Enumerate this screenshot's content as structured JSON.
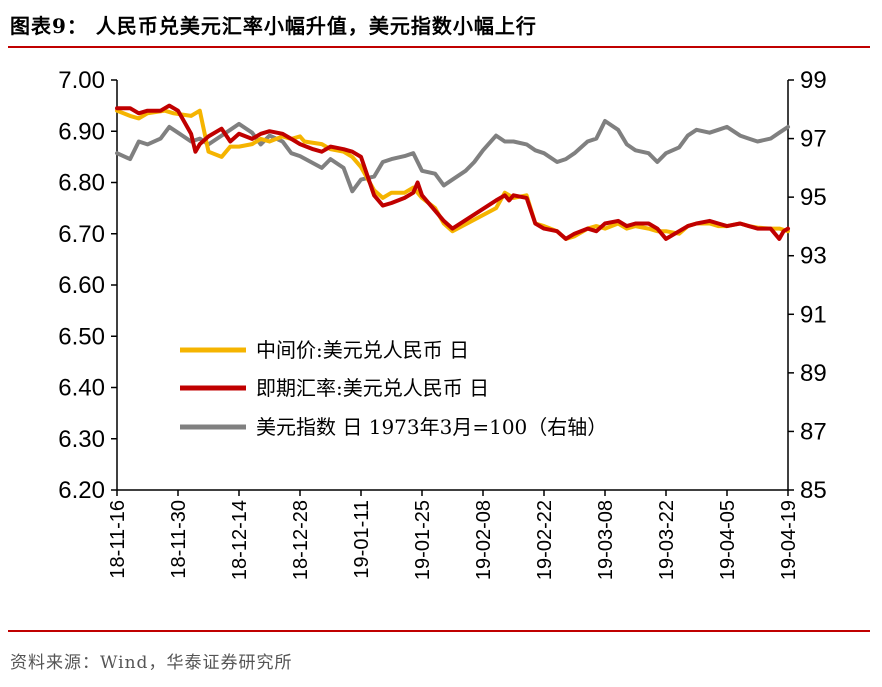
{
  "header": {
    "title": "图表9：  人民币兑美元汇率小幅升值，美元指数小幅上行"
  },
  "footer": {
    "source": "资料来源：Wind，华泰证券研究所"
  },
  "colors": {
    "series_1": "#f5b400",
    "series_2": "#c00000",
    "series_3": "#808080",
    "rule": "#c00000"
  },
  "chart_data": {
    "type": "line",
    "title": "",
    "x_tick_labels": [
      "18-11-16",
      "18-11-30",
      "18-12-14",
      "18-12-28",
      "19-01-11",
      "19-01-25",
      "19-02-08",
      "19-02-22",
      "19-03-08",
      "19-03-22",
      "19-04-05",
      "19-04-19"
    ],
    "x_start": "2018-11-16",
    "x_end": "2019-04-19",
    "y_left": {
      "min": 6.2,
      "max": 7.0,
      "ticks": [
        "6.20",
        "6.30",
        "6.40",
        "6.50",
        "6.60",
        "6.70",
        "6.80",
        "6.90",
        "7.00"
      ]
    },
    "y_right": {
      "min": 85,
      "max": 99,
      "ticks": [
        "85",
        "87",
        "89",
        "91",
        "93",
        "95",
        "97",
        "99"
      ]
    },
    "legend_position": "inside-lower-center",
    "grid": false,
    "series": [
      {
        "name": "中间价:美元兑人民币 日",
        "axis": "left",
        "points": [
          [
            "2018-11-16",
            6.94
          ],
          [
            "2018-11-19",
            6.93
          ],
          [
            "2018-11-21",
            6.925
          ],
          [
            "2018-11-23",
            6.935
          ],
          [
            "2018-11-27",
            6.94
          ],
          [
            "2018-11-29",
            6.935
          ],
          [
            "2018-12-03",
            6.93
          ],
          [
            "2018-12-05",
            6.94
          ],
          [
            "2018-12-07",
            6.86
          ],
          [
            "2018-12-10",
            6.85
          ],
          [
            "2018-12-12",
            6.87
          ],
          [
            "2018-12-14",
            6.87
          ],
          [
            "2018-12-17",
            6.875
          ],
          [
            "2018-12-19",
            6.885
          ],
          [
            "2018-12-21",
            6.88
          ],
          [
            "2018-12-24",
            6.89
          ],
          [
            "2018-12-26",
            6.885
          ],
          [
            "2018-12-28",
            6.89
          ],
          [
            "2018-12-29",
            6.88
          ],
          [
            "2019-01-02",
            6.875
          ],
          [
            "2019-01-04",
            6.865
          ],
          [
            "2019-01-07",
            6.86
          ],
          [
            "2019-01-09",
            6.85
          ],
          [
            "2019-01-11",
            6.83
          ],
          [
            "2019-01-14",
            6.785
          ],
          [
            "2019-01-16",
            6.77
          ],
          [
            "2019-01-18",
            6.78
          ],
          [
            "2019-01-21",
            6.78
          ],
          [
            "2019-01-23",
            6.79
          ],
          [
            "2019-01-25",
            6.77
          ],
          [
            "2019-01-28",
            6.75
          ],
          [
            "2019-01-30",
            6.72
          ],
          [
            "2019-02-01",
            6.705
          ],
          [
            "2019-02-11",
            6.75
          ],
          [
            "2019-02-13",
            6.78
          ],
          [
            "2019-02-15",
            6.77
          ],
          [
            "2019-02-18",
            6.775
          ],
          [
            "2019-02-20",
            6.72
          ],
          [
            "2019-02-22",
            6.715
          ],
          [
            "2019-02-25",
            6.705
          ],
          [
            "2019-02-27",
            6.69
          ],
          [
            "2019-03-01",
            6.695
          ],
          [
            "2019-03-04",
            6.71
          ],
          [
            "2019-03-06",
            6.715
          ],
          [
            "2019-03-08",
            6.71
          ],
          [
            "2019-03-11",
            6.72
          ],
          [
            "2019-03-13",
            6.71
          ],
          [
            "2019-03-15",
            6.715
          ],
          [
            "2019-03-18",
            6.71
          ],
          [
            "2019-03-20",
            6.705
          ],
          [
            "2019-03-22",
            6.705
          ],
          [
            "2019-03-25",
            6.7
          ],
          [
            "2019-03-27",
            6.715
          ],
          [
            "2019-03-29",
            6.72
          ],
          [
            "2019-04-01",
            6.72
          ],
          [
            "2019-04-03",
            6.715
          ],
          [
            "2019-04-05",
            6.715
          ],
          [
            "2019-04-08",
            6.72
          ],
          [
            "2019-04-10",
            6.715
          ],
          [
            "2019-04-12",
            6.712
          ],
          [
            "2019-04-15",
            6.71
          ],
          [
            "2019-04-17",
            6.71
          ],
          [
            "2019-04-19",
            6.705
          ]
        ]
      },
      {
        "name": "即期汇率:美元兑人民币 日",
        "axis": "left",
        "points": [
          [
            "2018-11-16",
            6.945
          ],
          [
            "2018-11-19",
            6.945
          ],
          [
            "2018-11-21",
            6.935
          ],
          [
            "2018-11-23",
            6.94
          ],
          [
            "2018-11-26",
            6.94
          ],
          [
            "2018-11-28",
            6.95
          ],
          [
            "2018-11-30",
            6.94
          ],
          [
            "2018-12-03",
            6.895
          ],
          [
            "2018-12-04",
            6.86
          ],
          [
            "2018-12-05",
            6.875
          ],
          [
            "2018-12-07",
            6.89
          ],
          [
            "2018-12-10",
            6.905
          ],
          [
            "2018-12-12",
            6.88
          ],
          [
            "2018-12-14",
            6.895
          ],
          [
            "2018-12-17",
            6.885
          ],
          [
            "2018-12-19",
            6.895
          ],
          [
            "2018-12-21",
            6.9
          ],
          [
            "2018-12-24",
            6.895
          ],
          [
            "2018-12-26",
            6.885
          ],
          [
            "2018-12-28",
            6.875
          ],
          [
            "2018-12-31",
            6.865
          ],
          [
            "2019-01-02",
            6.86
          ],
          [
            "2019-01-04",
            6.87
          ],
          [
            "2019-01-07",
            6.865
          ],
          [
            "2019-01-09",
            6.86
          ],
          [
            "2019-01-11",
            6.85
          ],
          [
            "2019-01-14",
            6.775
          ],
          [
            "2019-01-16",
            6.755
          ],
          [
            "2019-01-18",
            6.76
          ],
          [
            "2019-01-21",
            6.77
          ],
          [
            "2019-01-23",
            6.78
          ],
          [
            "2019-01-24",
            6.8
          ],
          [
            "2019-01-25",
            6.775
          ],
          [
            "2019-01-28",
            6.745
          ],
          [
            "2019-01-30",
            6.725
          ],
          [
            "2019-02-01",
            6.71
          ],
          [
            "2019-02-11",
            6.765
          ],
          [
            "2019-02-13",
            6.775
          ],
          [
            "2019-02-14",
            6.765
          ],
          [
            "2019-02-15",
            6.775
          ],
          [
            "2019-02-18",
            6.77
          ],
          [
            "2019-02-20",
            6.72
          ],
          [
            "2019-02-22",
            6.71
          ],
          [
            "2019-02-25",
            6.705
          ],
          [
            "2019-02-27",
            6.69
          ],
          [
            "2019-03-01",
            6.7
          ],
          [
            "2019-03-04",
            6.71
          ],
          [
            "2019-03-06",
            6.705
          ],
          [
            "2019-03-08",
            6.72
          ],
          [
            "2019-03-11",
            6.725
          ],
          [
            "2019-03-13",
            6.715
          ],
          [
            "2019-03-15",
            6.72
          ],
          [
            "2019-03-18",
            6.72
          ],
          [
            "2019-03-20",
            6.71
          ],
          [
            "2019-03-22",
            6.69
          ],
          [
            "2019-03-25",
            6.705
          ],
          [
            "2019-03-27",
            6.715
          ],
          [
            "2019-03-29",
            6.72
          ],
          [
            "2019-04-01",
            6.725
          ],
          [
            "2019-04-03",
            6.72
          ],
          [
            "2019-04-05",
            6.715
          ],
          [
            "2019-04-08",
            6.72
          ],
          [
            "2019-04-10",
            6.715
          ],
          [
            "2019-04-12",
            6.71
          ],
          [
            "2019-04-15",
            6.71
          ],
          [
            "2019-04-17",
            6.69
          ],
          [
            "2019-04-18",
            6.705
          ],
          [
            "2019-04-19",
            6.71
          ]
        ]
      },
      {
        "name": "美元指数 日 1973年3月=100（右轴）",
        "axis": "right",
        "points": [
          [
            "2018-11-16",
            96.5
          ],
          [
            "2018-11-19",
            96.3
          ],
          [
            "2018-11-21",
            96.9
          ],
          [
            "2018-11-23",
            96.8
          ],
          [
            "2018-11-26",
            97.0
          ],
          [
            "2018-11-28",
            97.4
          ],
          [
            "2018-11-30",
            97.2
          ],
          [
            "2018-12-03",
            96.9
          ],
          [
            "2018-12-05",
            97.0
          ],
          [
            "2018-12-07",
            96.8
          ],
          [
            "2018-12-10",
            97.1
          ],
          [
            "2018-12-12",
            97.3
          ],
          [
            "2018-12-14",
            97.5
          ],
          [
            "2018-12-17",
            97.2
          ],
          [
            "2018-12-19",
            96.8
          ],
          [
            "2018-12-21",
            97.1
          ],
          [
            "2018-12-24",
            96.9
          ],
          [
            "2018-12-26",
            96.5
          ],
          [
            "2018-12-28",
            96.4
          ],
          [
            "2019-01-02",
            96.0
          ],
          [
            "2019-01-04",
            96.3
          ],
          [
            "2019-01-07",
            96.0
          ],
          [
            "2019-01-09",
            95.2
          ],
          [
            "2019-01-11",
            95.6
          ],
          [
            "2019-01-14",
            95.7
          ],
          [
            "2019-01-16",
            96.2
          ],
          [
            "2019-01-18",
            96.3
          ],
          [
            "2019-01-21",
            96.4
          ],
          [
            "2019-01-23",
            96.5
          ],
          [
            "2019-01-25",
            95.9
          ],
          [
            "2019-01-28",
            95.8
          ],
          [
            "2019-01-30",
            95.4
          ],
          [
            "2019-02-01",
            95.6
          ],
          [
            "2019-02-04",
            95.9
          ],
          [
            "2019-02-06",
            96.2
          ],
          [
            "2019-02-08",
            96.6
          ],
          [
            "2019-02-11",
            97.1
          ],
          [
            "2019-02-13",
            96.9
          ],
          [
            "2019-02-15",
            96.9
          ],
          [
            "2019-02-18",
            96.8
          ],
          [
            "2019-02-20",
            96.6
          ],
          [
            "2019-02-22",
            96.5
          ],
          [
            "2019-02-25",
            96.2
          ],
          [
            "2019-02-27",
            96.3
          ],
          [
            "2019-03-01",
            96.5
          ],
          [
            "2019-03-04",
            96.9
          ],
          [
            "2019-03-06",
            97.0
          ],
          [
            "2019-03-08",
            97.6
          ],
          [
            "2019-03-11",
            97.3
          ],
          [
            "2019-03-13",
            96.8
          ],
          [
            "2019-03-15",
            96.6
          ],
          [
            "2019-03-18",
            96.5
          ],
          [
            "2019-03-20",
            96.2
          ],
          [
            "2019-03-22",
            96.5
          ],
          [
            "2019-03-25",
            96.7
          ],
          [
            "2019-03-27",
            97.1
          ],
          [
            "2019-03-29",
            97.3
          ],
          [
            "2019-04-01",
            97.2
          ],
          [
            "2019-04-03",
            97.3
          ],
          [
            "2019-04-05",
            97.4
          ],
          [
            "2019-04-08",
            97.1
          ],
          [
            "2019-04-10",
            97.0
          ],
          [
            "2019-04-12",
            96.9
          ],
          [
            "2019-04-15",
            97.0
          ],
          [
            "2019-04-17",
            97.2
          ],
          [
            "2019-04-19",
            97.4
          ]
        ]
      }
    ]
  }
}
